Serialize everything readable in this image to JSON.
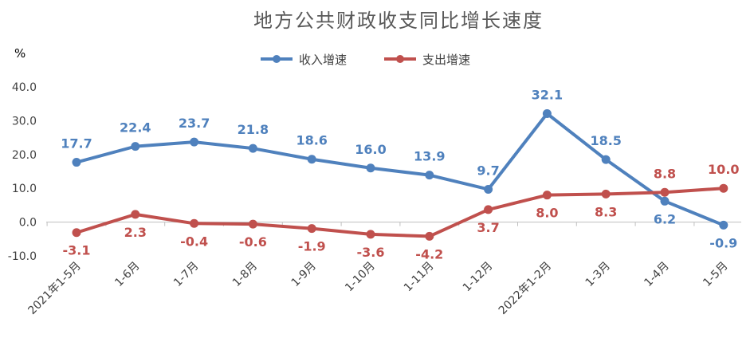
{
  "chart_data": {
    "type": "line",
    "title": "地方公共财政收支同比增长速度",
    "ylabel": "%",
    "xlabel": "",
    "ylim": [
      -10,
      40
    ],
    "yticks": [
      "40.0",
      "30.0",
      "20.0",
      "10.0",
      "0.0",
      "-10.0"
    ],
    "ytick_values": [
      40,
      30,
      20,
      10,
      0,
      -10
    ],
    "categories": [
      "2021年1-5月",
      "1-6月",
      "1-7月",
      "1-8月",
      "1-9月",
      "1-10月",
      "1-11月",
      "1-12月",
      "2022年1-2月",
      "1-3月",
      "1-4月",
      "1-5月"
    ],
    "legend_position": "top-center",
    "grid": false,
    "series": [
      {
        "name": "收入增速",
        "color": "#4F81BD",
        "values": [
          17.7,
          22.4,
          23.7,
          21.8,
          18.6,
          16.0,
          13.9,
          9.7,
          32.1,
          18.5,
          6.2,
          -0.9
        ],
        "labels": [
          "17.7",
          "22.4",
          "23.7",
          "21.8",
          "18.6",
          "16.0",
          "13.9",
          "9.7",
          "32.1",
          "18.5",
          "6.2",
          "-0.9"
        ],
        "label_side": [
          "above",
          "above",
          "above",
          "above",
          "above",
          "above",
          "above",
          "above",
          "above",
          "above",
          "below",
          "below"
        ]
      },
      {
        "name": "支出增速",
        "color": "#C0504D",
        "values": [
          -3.1,
          2.3,
          -0.4,
          -0.6,
          -1.9,
          -3.6,
          -4.2,
          3.7,
          8.0,
          8.3,
          8.8,
          10.0
        ],
        "labels": [
          "-3.1",
          "2.3",
          "-0.4",
          "-0.6",
          "-1.9",
          "-3.6",
          "-4.2",
          "3.7",
          "8.0",
          "8.3",
          "8.8",
          "10.0"
        ],
        "label_side": [
          "below",
          "below",
          "below",
          "below",
          "below",
          "below",
          "below",
          "below",
          "below",
          "below",
          "above",
          "above"
        ]
      }
    ]
  }
}
